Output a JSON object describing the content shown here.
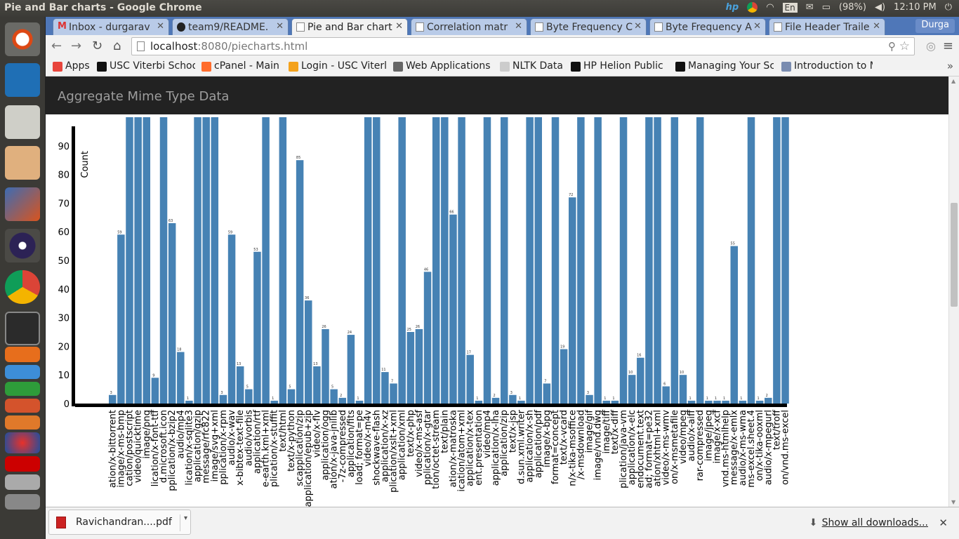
{
  "os": {
    "window_title": "Pie and Bar charts - Google Chrome",
    "battery": "(98%)",
    "time": "12:10 PM",
    "language": "En"
  },
  "browser": {
    "tabs": [
      {
        "label": "Inbox - durgarav",
        "icon": "gmail-icon"
      },
      {
        "label": "team9/README.",
        "icon": "github-icon"
      },
      {
        "label": "Pie and Bar chart",
        "icon": "page-icon",
        "active": true
      },
      {
        "label": "Correlation matr",
        "icon": "page-icon"
      },
      {
        "label": "Byte Frequency C",
        "icon": "page-icon"
      },
      {
        "label": "Byte Frequency A",
        "icon": "page-icon"
      },
      {
        "label": "File Header Traile",
        "icon": "page-icon"
      }
    ],
    "user": "Durga",
    "url_host": "localhost",
    "url_rest": ":8080/piecharts.html",
    "bookmarks": [
      {
        "label": "Apps",
        "color": "#e8453c"
      },
      {
        "label": "USC Viterbi Schoo",
        "color": "#111"
      },
      {
        "label": "cPanel - Main",
        "color": "#ff6c2c"
      },
      {
        "label": "Login - USC Viterl",
        "color": "#f4a21c"
      },
      {
        "label": "Web Applications",
        "color": "#666"
      },
      {
        "label": "NLTK Data",
        "color": "#ccc"
      },
      {
        "label": "HP Helion Public",
        "color": "#111"
      },
      {
        "label": "Managing Your Sc",
        "color": "#111"
      },
      {
        "label": "Introduction to M",
        "color": "#7a8cb0"
      }
    ],
    "more": "»"
  },
  "page": {
    "header": "Aggregate Mime Type Data"
  },
  "chart_data": {
    "type": "bar",
    "ylabel": "Count",
    "xlabel": "",
    "ylim": [
      0,
      100
    ],
    "yticks": [
      0,
      10,
      20,
      30,
      40,
      50,
      60,
      70,
      80,
      90
    ],
    "color": "#4682b4",
    "categories": [
      "ation/x-bittorrent",
      "image/x-ms-bmp",
      "cation/postscript",
      "video/quicktime",
      "image/png",
      "lication/x-font-ttf",
      "d.microsoft.icon",
      "pplication/x-bzip2",
      "audio/mp4",
      "lication/x-sqlite3",
      "application/gzip",
      "message/rfc822",
      "image/svg+xml",
      "pplication/x-rpm",
      "audio/x-wav",
      "x-bibtex-text-file",
      "audio/vorbis",
      "application/rtf",
      "e-earth.kml+xml",
      "plication/x-stuffit",
      "text/html",
      "text/x-python",
      "scapplication/zip",
      "scapplication/epub+zip",
      "video/x-flv",
      "application/ogg",
      "ation/x-java-jnilib",
      "-7z-compressed",
      "application/fits",
      "load; format=pe",
      "video/x-m4v",
      "shockwave-flash",
      "application/x-xz",
      "plication/xslt+xml",
      "application/xml",
      "text/x-php",
      "video/x-ms-asf",
      "pplication/x-gtar",
      "tion/octet-stream",
      "text/plain",
      "ation/x-matroska",
      "ication/atom+xml",
      "application/x-tex",
      "ent.presentation",
      "video/mp4",
      "application/x-lha",
      "application/zip",
      "text/x-jsp",
      "d.sun.xml.writer",
      "application/x-sh",
      "application/pdf",
      "image/x-bpg",
      "format=concept",
      "text/x-vcard",
      "n/x-tika-msoffice",
      "/x-msdownload",
      "image/gif",
      "image/vnd.dwg",
      "image/tiff",
      "text/x-diff",
      "plication/java-vm",
      "application/x-elc",
      "endocument.text",
      "ad; format=pe32",
      "ation/xhtml+xml",
      "video/x-ms-wmv",
      "on/x-msmetafile",
      "video/mpeg",
      "audio/x-aiff",
      "rar-compressed",
      "image/jpeg",
      "image/x-xcf",
      "vnd.ms-htmlhelp",
      "message/x-emlx",
      "audio/x-ms-wma",
      "ms-excel.sheet.4",
      "on/x-tika-ooxml",
      "audio/x-mpegurl",
      "text/troff",
      "on/vnd.ms-excel"
    ],
    "values": [
      3,
      59,
      100,
      100,
      100,
      9,
      100,
      63,
      18,
      1,
      100,
      100,
      100,
      3,
      59,
      13,
      5,
      53,
      100,
      1,
      100,
      5,
      85,
      36,
      13,
      26,
      5,
      2,
      24,
      1,
      100,
      100,
      11,
      7,
      100,
      25,
      26,
      46,
      100,
      100,
      66,
      100,
      17,
      1,
      100,
      2,
      100,
      3,
      1,
      100,
      100,
      7,
      100,
      19,
      72,
      100,
      3,
      100,
      1,
      1,
      100,
      10,
      16,
      100,
      100,
      6,
      100,
      10,
      1,
      100,
      1,
      1,
      1,
      55,
      1,
      100,
      1,
      2,
      100,
      100
    ],
    "data_labels": [
      3,
      59,
      null,
      null,
      null,
      9,
      null,
      63,
      18,
      1,
      null,
      null,
      null,
      3,
      59,
      13,
      5,
      53,
      null,
      1,
      null,
      5,
      85,
      36,
      13,
      26,
      5,
      2,
      24,
      1,
      null,
      null,
      11,
      7,
      null,
      25,
      26,
      46,
      null,
      null,
      66,
      null,
      17,
      1,
      null,
      2,
      null,
      3,
      1,
      null,
      null,
      7,
      null,
      19,
      72,
      null,
      3,
      null,
      1,
      1,
      null,
      10,
      16,
      null,
      null,
      6,
      null,
      10,
      1,
      null,
      1,
      1,
      1,
      55,
      1,
      null,
      1,
      2,
      null,
      null
    ]
  },
  "downloads": {
    "file": "Ravichandran....pdf",
    "show_all": "Show all downloads..."
  }
}
